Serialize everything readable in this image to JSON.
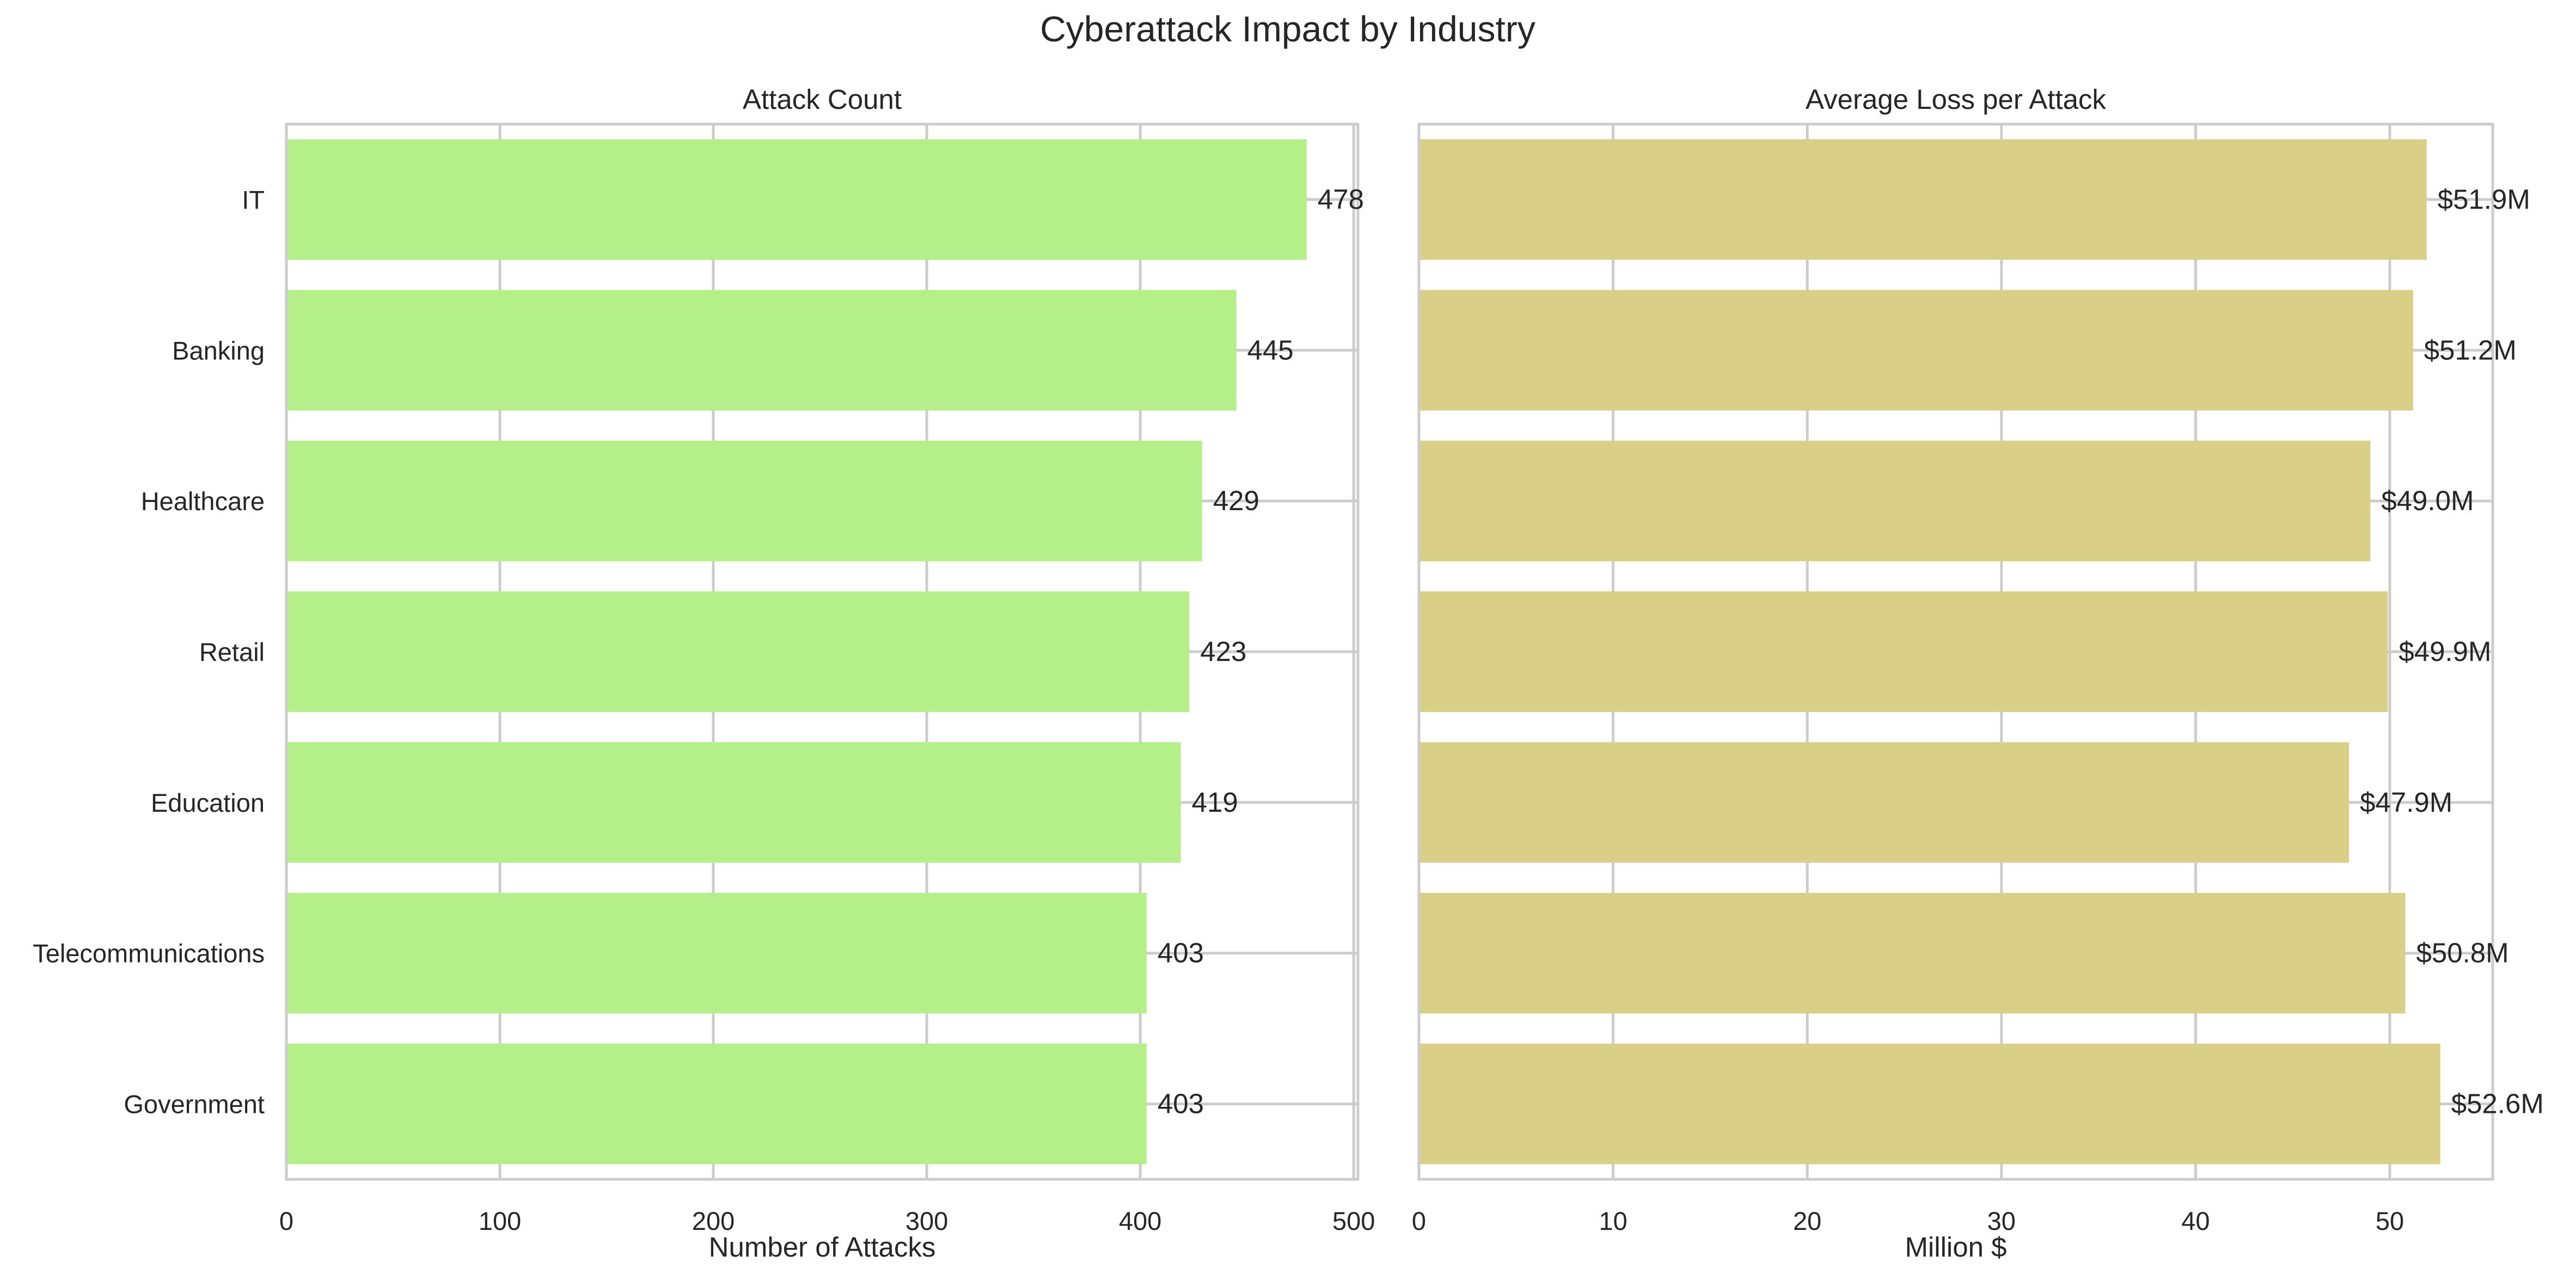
{
  "chart_data": {
    "type": "bar",
    "orientation": "horizontal",
    "title": "Cyberattack Impact by Industry",
    "categories": [
      "IT",
      "Banking",
      "Healthcare",
      "Retail",
      "Education",
      "Telecommunications",
      "Government"
    ],
    "panels": [
      {
        "title": "Attack Count",
        "xlabel": "Number of Attacks",
        "xlim": [
          0,
          502
        ],
        "xticks": [
          "0",
          "100",
          "200",
          "300",
          "400",
          "500"
        ],
        "values": [
          478,
          445,
          429,
          423,
          419,
          403,
          403
        ],
        "labels": [
          "478",
          "445",
          "429",
          "423",
          "419",
          "403",
          "403"
        ],
        "color": "#b5ef8a"
      },
      {
        "title": "Average Loss per Attack",
        "xlabel": "Million $",
        "xlim": [
          0,
          55.3
        ],
        "xticks": [
          "0",
          "10",
          "20",
          "30",
          "40",
          "50"
        ],
        "values": [
          51.9,
          51.2,
          49.0,
          49.9,
          47.9,
          50.8,
          52.6
        ],
        "labels": [
          "$51.9M",
          "$51.2M",
          "$49.0M",
          "$49.9M",
          "$47.9M",
          "$50.8M",
          "$52.6M"
        ],
        "color": "#d9cf87"
      }
    ],
    "grid": true,
    "legend": "none"
  }
}
